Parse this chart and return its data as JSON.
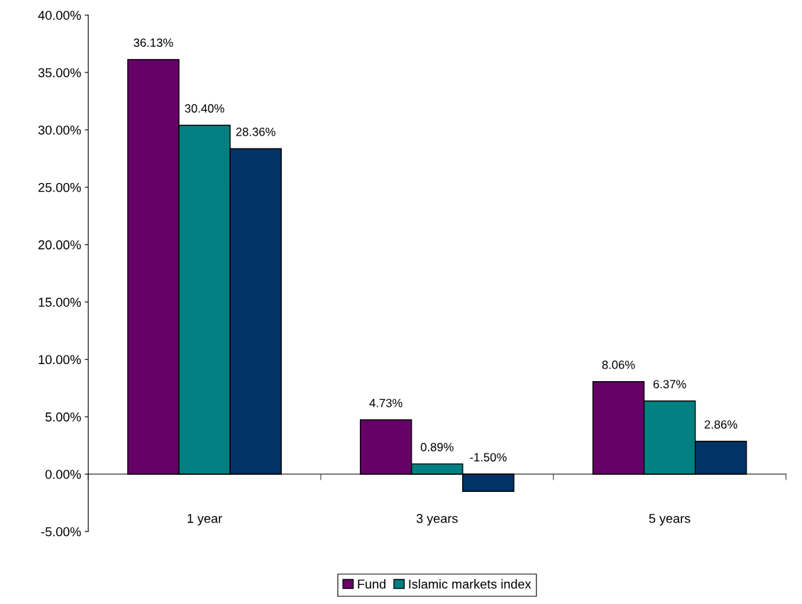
{
  "chart_data": {
    "type": "bar",
    "categories": [
      "1 year",
      "3 years",
      "5 years"
    ],
    "series": [
      {
        "name": "Fund",
        "color": "#660066",
        "values": [
          36.13,
          4.73,
          8.06
        ],
        "value_labels": [
          "36.13%",
          "4.73%",
          "8.06%"
        ]
      },
      {
        "name": "Islamic markets index",
        "color": "#008080",
        "values": [
          30.4,
          0.89,
          6.37
        ],
        "value_labels": [
          "30.40%",
          "0.89%",
          "6.37%"
        ]
      },
      {
        "color": "#003366",
        "values": [
          28.36,
          -1.5,
          2.86
        ],
        "value_labels": [
          "28.36%",
          "-1.50%",
          "2.86%"
        ]
      }
    ],
    "ylim": [
      -5,
      40
    ],
    "yticks": [
      {
        "value": -5,
        "label": "-5.00%"
      },
      {
        "value": 0,
        "label": "0.00%"
      },
      {
        "value": 5,
        "label": "5.00%"
      },
      {
        "value": 10,
        "label": "10.00%"
      },
      {
        "value": 15,
        "label": "15.00%"
      },
      {
        "value": 20,
        "label": "20.00%"
      },
      {
        "value": 25,
        "label": "25.00%"
      },
      {
        "value": 30,
        "label": "30.00%"
      },
      {
        "value": 35,
        "label": "35.00%"
      },
      {
        "value": 40,
        "label": "40.00%"
      }
    ],
    "legend": "bottom"
  }
}
